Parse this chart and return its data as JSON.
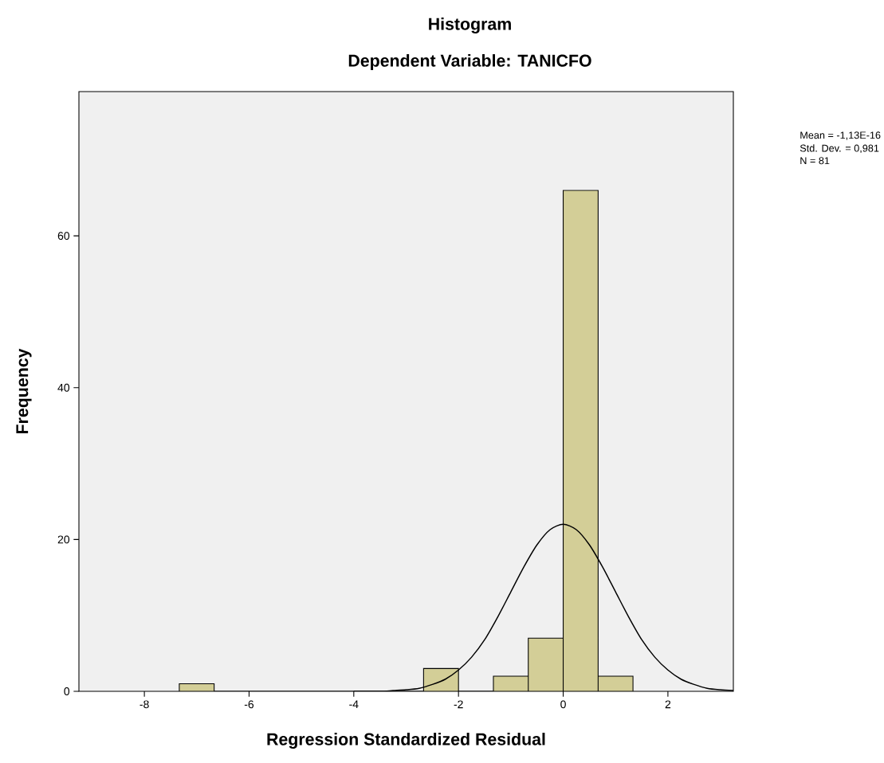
{
  "chart_data": {
    "type": "histogram",
    "title": "Histogram",
    "subtitle": "Dependent Variable: TANICFO",
    "xlabel": "Regression Standardized Residual",
    "ylabel": "Frequency",
    "annotations": [
      "Mean = -1,13E-16",
      "Std. Dev. = 0,981",
      "N = 81"
    ],
    "series": [
      {
        "bins": [
          -7.333,
          -6.667,
          -6,
          -5.333,
          -4.667,
          -4,
          -3.333,
          -2.667,
          -2,
          -1.333,
          -0.667,
          0,
          0.667,
          1.333
        ],
        "values": [
          1,
          0,
          0,
          0,
          0,
          0,
          0,
          3,
          0,
          2,
          7,
          66,
          2
        ],
        "color": "#d3ce97"
      },
      {
        "type": "line",
        "x": [
          -4,
          -3.5,
          -3.25,
          -3,
          -2.75,
          -2.5,
          -2.25,
          -2,
          -1.75,
          -1.5,
          -1.25,
          -1,
          -0.75,
          -0.5,
          -0.25,
          0,
          0.25,
          0.5,
          0.75,
          1,
          1.25,
          1.5,
          1.75,
          2,
          2.25,
          2.5,
          2.75,
          3,
          3.25
        ],
        "values": [
          0,
          0,
          0.1,
          0.2,
          0.4,
          0.9,
          1.6,
          2.8,
          4.5,
          6.8,
          9.8,
          13.1,
          16.4,
          19.3,
          21.3,
          22,
          21.3,
          19.3,
          16.4,
          13.1,
          9.8,
          6.8,
          4.5,
          2.8,
          1.6,
          0.9,
          0.4,
          0.2,
          0.1
        ],
        "color": "#000000"
      }
    ],
    "xlim": [
      -9.25,
      3.25
    ],
    "ylim": [
      0,
      79
    ],
    "xticks": [
      -8,
      -6,
      -4,
      -2,
      0,
      2
    ],
    "yticks": [
      0,
      20,
      40,
      60
    ],
    "grid": false,
    "marker": "none",
    "line_style": "solid"
  }
}
